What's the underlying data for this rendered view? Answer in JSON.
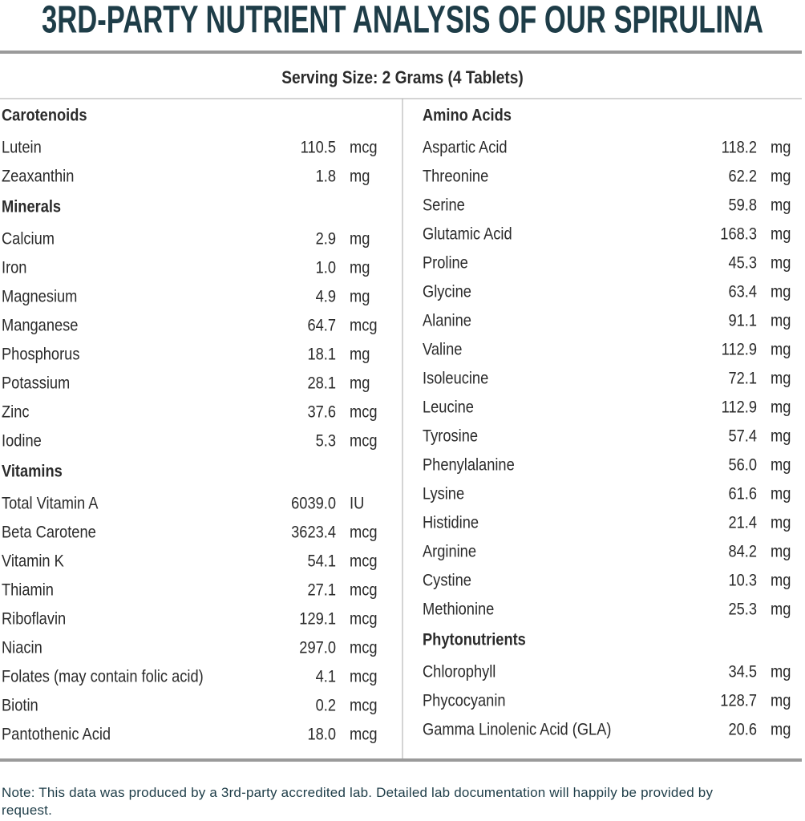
{
  "header": {
    "title": "3RD-PARTY NUTRIENT ANALYSIS OF OUR SPIRULINA"
  },
  "serving_size": "Serving Size: 2 Grams (4 Tablets)",
  "columns": [
    {
      "sections": [
        {
          "heading": "Carotenoids",
          "items": [
            {
              "name": "Lutein",
              "amount": "110.5",
              "unit": "mcg"
            },
            {
              "name": "Zeaxanthin",
              "amount": "1.8",
              "unit": "mg"
            }
          ]
        },
        {
          "heading": "Minerals",
          "items": [
            {
              "name": "Calcium",
              "amount": "2.9",
              "unit": "mg"
            },
            {
              "name": "Iron",
              "amount": "1.0",
              "unit": "mg"
            },
            {
              "name": "Magnesium",
              "amount": "4.9",
              "unit": "mg"
            },
            {
              "name": "Manganese",
              "amount": "64.7",
              "unit": "mcg"
            },
            {
              "name": "Phosphorus",
              "amount": "18.1",
              "unit": "mg"
            },
            {
              "name": "Potassium",
              "amount": "28.1",
              "unit": "mg"
            },
            {
              "name": "Zinc",
              "amount": "37.6",
              "unit": "mcg"
            },
            {
              "name": "Iodine",
              "amount": "5.3",
              "unit": "mcg"
            }
          ]
        },
        {
          "heading": "Vitamins",
          "items": [
            {
              "name": "Total Vitamin A",
              "amount": "6039.0",
              "unit": "IU"
            },
            {
              "name": "Beta Carotene",
              "amount": "3623.4",
              "unit": "mcg"
            },
            {
              "name": "Vitamin K",
              "amount": "54.1",
              "unit": "mcg"
            },
            {
              "name": "Thiamin",
              "amount": "27.1",
              "unit": "mcg"
            },
            {
              "name": "Riboflavin",
              "amount": "129.1",
              "unit": "mcg"
            },
            {
              "name": "Niacin",
              "amount": "297.0",
              "unit": "mcg"
            },
            {
              "name": "Folates (may contain folic acid)",
              "amount": "4.1",
              "unit": "mcg"
            },
            {
              "name": "Biotin",
              "amount": "0.2",
              "unit": "mcg"
            },
            {
              "name": "Pantothenic Acid",
              "amount": "18.0",
              "unit": "mcg"
            }
          ]
        }
      ]
    },
    {
      "sections": [
        {
          "heading": "Amino Acids",
          "items": [
            {
              "name": "Aspartic Acid",
              "amount": "118.2",
              "unit": "mg"
            },
            {
              "name": "Threonine",
              "amount": "62.2",
              "unit": "mg"
            },
            {
              "name": "Serine",
              "amount": "59.8",
              "unit": "mg"
            },
            {
              "name": "Glutamic Acid",
              "amount": "168.3",
              "unit": "mg"
            },
            {
              "name": "Proline",
              "amount": "45.3",
              "unit": "mg"
            },
            {
              "name": "Glycine",
              "amount": "63.4",
              "unit": "mg"
            },
            {
              "name": "Alanine",
              "amount": "91.1",
              "unit": "mg"
            },
            {
              "name": "Valine",
              "amount": "112.9",
              "unit": "mg"
            },
            {
              "name": "Isoleucine",
              "amount": "72.1",
              "unit": "mg"
            },
            {
              "name": "Leucine",
              "amount": "112.9",
              "unit": "mg"
            },
            {
              "name": "Tyrosine",
              "amount": "57.4",
              "unit": "mg"
            },
            {
              "name": "Phenylalanine",
              "amount": "56.0",
              "unit": "mg"
            },
            {
              "name": "Lysine",
              "amount": "61.6",
              "unit": "mg"
            },
            {
              "name": "Histidine",
              "amount": "21.4",
              "unit": "mg"
            },
            {
              "name": "Arginine",
              "amount": "84.2",
              "unit": "mg"
            },
            {
              "name": "Cystine",
              "amount": "10.3",
              "unit": "mg"
            },
            {
              "name": "Methionine",
              "amount": "25.3",
              "unit": "mg"
            }
          ]
        },
        {
          "heading": "Phytonutrients",
          "items": [
            {
              "name": "Chlorophyll",
              "amount": "34.5",
              "unit": "mg"
            },
            {
              "name": "Phycocyanin",
              "amount": "128.7",
              "unit": "mg"
            },
            {
              "name": "Gamma Linolenic Acid (GLA)",
              "amount": "20.6",
              "unit": "mg"
            }
          ]
        }
      ]
    }
  ],
  "note": "Note: This data was produced by a 3rd-party accredited lab. Detailed lab documentation will happily be provided by request."
}
